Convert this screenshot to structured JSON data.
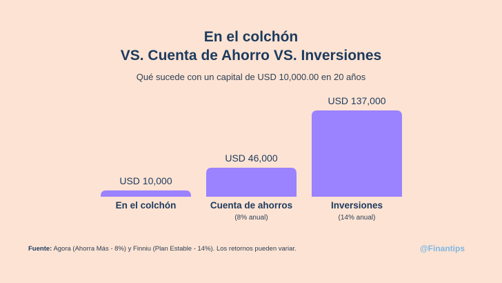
{
  "title_line1": "En el colchón",
  "title_line2": "VS. Cuenta de Ahorro VS. Inversiones",
  "subtitle": "Qué sucede con un capital de USD 10,000.00 en 20 años",
  "footer": {
    "source_label": "Fuente:",
    "source_text": "Agora (Ahorra Más - 8%) y Finniu (Plan Estable - 14%). Los retornos pueden variar."
  },
  "brand": "@Finantips",
  "colors": {
    "bar": "#9b82ff",
    "background": "#fde3d3",
    "title": "#1c3a5e",
    "brand": "#7fb8e3"
  },
  "chart_data": {
    "type": "bar",
    "categories": [
      "En el colchón",
      "Cuenta de ahorros",
      "Inversiones"
    ],
    "sublabels": [
      "",
      "(8% anual)",
      "(14% anual)"
    ],
    "values": [
      10000,
      46000,
      137000
    ],
    "value_labels": [
      "USD 10,000",
      "USD 46,000",
      "USD 137,000"
    ],
    "ylim": [
      0,
      137000
    ],
    "grid": false,
    "legend": "none"
  }
}
